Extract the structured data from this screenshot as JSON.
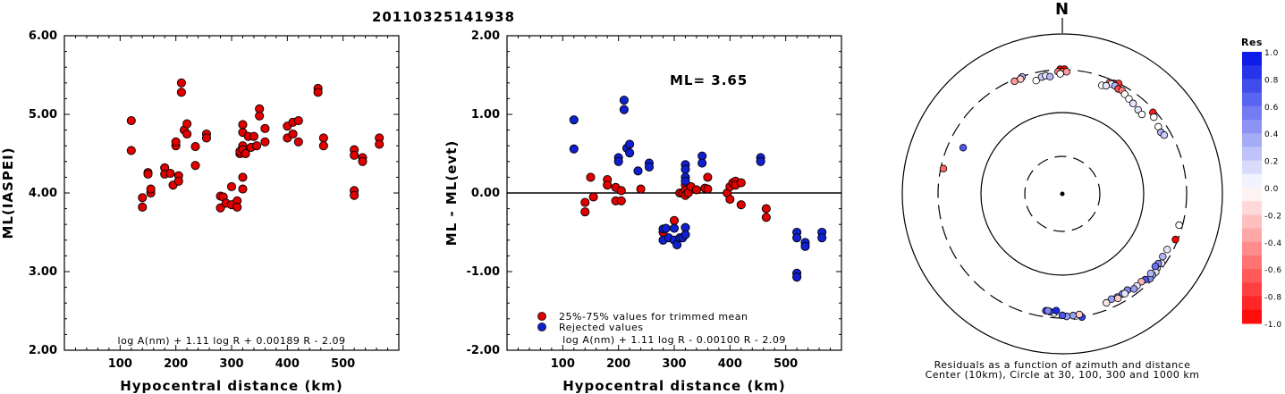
{
  "title": "20110325141938",
  "colors": {
    "red": "#e00000",
    "blue": "#1020d0"
  },
  "left": {
    "ylabel": "ML(IASPEI)",
    "xlabel": "Hypocentral distance (km)",
    "yticks": [
      "2.00",
      "3.00",
      "4.00",
      "5.00",
      "6.00"
    ],
    "xticks": [
      "100",
      "200",
      "300",
      "400",
      "500"
    ],
    "formula": "log A(nm) + 1.11 log R + 0.00189 R - 2.09"
  },
  "middle": {
    "ylabel": "ML - ML(evt)",
    "xlabel": "Hypocentral distance (km)",
    "yticks": [
      "-2.00",
      "-1.00",
      "0.00",
      "1.00",
      "2.00"
    ],
    "xticks": [
      "100",
      "200",
      "300",
      "400",
      "500"
    ],
    "ml_text": "ML= 3.65",
    "legend": [
      "25%-75% values for trimmed mean",
      "Rejected values"
    ],
    "formula": "log A(nm) + 1.11 log R - 0.00100 R - 2.09"
  },
  "polar": {
    "north": "N",
    "caption1": "Residuals as a function of azimuth and distance",
    "caption2": "Center (10km), Circle at 30, 100, 300 and 1000 km",
    "colorbar_title": "Res",
    "colorbar_ticks": [
      "1.0",
      "0.8",
      "0.6",
      "0.4",
      "0.2",
      "0.0",
      "-0.2",
      "-0.4",
      "-0.6",
      "-0.8",
      "-1.0"
    ]
  },
  "chart_data": [
    {
      "type": "scatter",
      "title": "20110325141938",
      "xlabel": "Hypocentral distance (km)",
      "ylabel": "ML(IASPEI)",
      "xlim": [
        0,
        600
      ],
      "ylim": [
        2,
        6
      ],
      "points": [
        [
          120,
          4.92
        ],
        [
          120,
          4.54
        ],
        [
          140,
          3.94
        ],
        [
          140,
          3.82
        ],
        [
          150,
          4.26
        ],
        [
          150,
          4.24
        ],
        [
          155,
          4.0
        ],
        [
          155,
          4.05
        ],
        [
          180,
          4.32
        ],
        [
          180,
          4.24
        ],
        [
          190,
          4.25
        ],
        [
          195,
          4.1
        ],
        [
          200,
          4.6
        ],
        [
          200,
          4.65
        ],
        [
          205,
          4.22
        ],
        [
          205,
          4.15
        ],
        [
          210,
          5.4
        ],
        [
          210,
          5.28
        ],
        [
          215,
          4.8
        ],
        [
          220,
          4.88
        ],
        [
          220,
          4.75
        ],
        [
          235,
          4.59
        ],
        [
          235,
          4.35
        ],
        [
          255,
          4.75
        ],
        [
          255,
          4.7
        ],
        [
          280,
          3.96
        ],
        [
          280,
          3.81
        ],
        [
          285,
          3.95
        ],
        [
          290,
          3.87
        ],
        [
          300,
          3.85
        ],
        [
          300,
          4.08
        ],
        [
          310,
          3.9
        ],
        [
          310,
          3.82
        ],
        [
          315,
          4.5
        ],
        [
          315,
          4.53
        ],
        [
          320,
          4.87
        ],
        [
          320,
          4.77
        ],
        [
          320,
          4.6
        ],
        [
          320,
          4.55
        ],
        [
          320,
          4.2
        ],
        [
          320,
          4.05
        ],
        [
          325,
          4.5
        ],
        [
          330,
          4.72
        ],
        [
          335,
          4.58
        ],
        [
          340,
          4.72
        ],
        [
          345,
          4.6
        ],
        [
          350,
          5.07
        ],
        [
          350,
          4.98
        ],
        [
          360,
          4.82
        ],
        [
          360,
          4.65
        ],
        [
          400,
          4.7
        ],
        [
          400,
          4.85
        ],
        [
          410,
          4.75
        ],
        [
          410,
          4.9
        ],
        [
          420,
          4.92
        ],
        [
          420,
          4.65
        ],
        [
          455,
          5.33
        ],
        [
          455,
          5.28
        ],
        [
          465,
          4.7
        ],
        [
          465,
          4.6
        ],
        [
          520,
          4.55
        ],
        [
          520,
          4.48
        ],
        [
          520,
          4.03
        ],
        [
          520,
          3.97
        ],
        [
          535,
          4.45
        ],
        [
          535,
          4.4
        ],
        [
          565,
          4.7
        ],
        [
          565,
          4.62
        ]
      ]
    },
    {
      "type": "scatter",
      "xlabel": "Hypocentral distance (km)",
      "ylabel": "ML - ML(evt)",
      "xlim": [
        0,
        600
      ],
      "ylim": [
        -2,
        2
      ],
      "hline": 0,
      "series": [
        {
          "name": "25%-75% values for trimmed mean",
          "color": "#e00000",
          "points": [
            [
              140,
              -0.12
            ],
            [
              140,
              -0.24
            ],
            [
              150,
              0.2
            ],
            [
              155,
              -0.05
            ],
            [
              180,
              0.17
            ],
            [
              180,
              0.1
            ],
            [
              195,
              0.07
            ],
            [
              195,
              -0.1
            ],
            [
              205,
              -0.1
            ],
            [
              205,
              0.03
            ],
            [
              240,
              0.05
            ],
            [
              280,
              -0.5
            ],
            [
              300,
              -0.35
            ],
            [
              310,
              0.0
            ],
            [
              315,
              0.0
            ],
            [
              320,
              0.1
            ],
            [
              320,
              0.03
            ],
            [
              320,
              -0.03
            ],
            [
              325,
              0.0
            ],
            [
              330,
              0.08
            ],
            [
              340,
              0.04
            ],
            [
              355,
              0.06
            ],
            [
              360,
              0.2
            ],
            [
              360,
              0.05
            ],
            [
              395,
              0.0
            ],
            [
              400,
              -0.08
            ],
            [
              400,
              0.08
            ],
            [
              405,
              0.13
            ],
            [
              410,
              0.15
            ],
            [
              410,
              0.1
            ],
            [
              420,
              0.13
            ],
            [
              420,
              -0.15
            ],
            [
              465,
              -0.2
            ],
            [
              465,
              -0.31
            ]
          ]
        },
        {
          "name": "Rejected values",
          "color": "#1020d0",
          "points": [
            [
              120,
              0.93
            ],
            [
              120,
              0.56
            ],
            [
              200,
              0.45
            ],
            [
              200,
              0.4
            ],
            [
              210,
              1.18
            ],
            [
              210,
              1.06
            ],
            [
              215,
              0.57
            ],
            [
              220,
              0.62
            ],
            [
              220,
              0.51
            ],
            [
              235,
              0.28
            ],
            [
              255,
              0.38
            ],
            [
              255,
              0.33
            ],
            [
              280,
              -0.46
            ],
            [
              280,
              -0.6
            ],
            [
              285,
              -0.45
            ],
            [
              290,
              -0.57
            ],
            [
              300,
              -0.6
            ],
            [
              300,
              -0.45
            ],
            [
              305,
              -0.66
            ],
            [
              310,
              -0.57
            ],
            [
              315,
              -0.57
            ],
            [
              320,
              -0.44
            ],
            [
              320,
              -0.53
            ],
            [
              320,
              0.36
            ],
            [
              320,
              0.3
            ],
            [
              320,
              0.2
            ],
            [
              320,
              0.15
            ],
            [
              350,
              0.47
            ],
            [
              350,
              0.38
            ],
            [
              455,
              0.45
            ],
            [
              455,
              0.4
            ],
            [
              520,
              -0.5
            ],
            [
              520,
              -0.57
            ],
            [
              520,
              -1.02
            ],
            [
              520,
              -1.07
            ],
            [
              535,
              -0.63
            ],
            [
              535,
              -0.68
            ],
            [
              565,
              -0.5
            ],
            [
              565,
              -0.57
            ]
          ]
        }
      ]
    },
    {
      "type": "scatter",
      "subtype": "polar",
      "xlabel": "Residuals as a function of azimuth and distance",
      "colorbar": {
        "min": -1.0,
        "max": 1.0
      },
      "rings_km": [
        30,
        100,
        300,
        1000
      ],
      "points_azimuth_dist_res": [
        [
          -1,
          305,
          -1.0
        ],
        [
          1,
          305,
          -1.0
        ],
        [
          -2,
          285,
          -0.5
        ],
        [
          0,
          285,
          -0.6
        ],
        [
          2,
          285,
          -0.4
        ],
        [
          -1,
          270,
          0.0
        ],
        [
          25,
          283,
          -0.9
        ],
        [
          27,
          298,
          -0.8
        ],
        [
          23,
          275,
          -0.6
        ],
        [
          25,
          276,
          -0.4
        ],
        [
          24,
          271,
          0.1
        ],
        [
          26,
          270,
          0.3
        ],
        [
          28,
          262,
          -0.7
        ],
        [
          30,
          265,
          -0.5
        ],
        [
          20,
          240,
          0.0
        ],
        [
          22,
          247,
          0.1
        ],
        [
          32,
          253,
          0.0
        ],
        [
          35,
          243,
          0.0
        ],
        [
          38,
          236,
          0.1
        ],
        [
          42,
          226,
          0.1
        ],
        [
          45,
          222,
          0.0
        ],
        [
          -19,
          296,
          0.3
        ],
        [
          -20,
          285,
          -0.2
        ],
        [
          -23,
          286,
          -0.4
        ],
        [
          -13,
          245,
          0.0
        ],
        [
          -10,
          260,
          0.2
        ],
        [
          -8,
          265,
          0.1
        ],
        [
          -6,
          255,
          0.3
        ],
        [
          48,
          282,
          -0.9
        ],
        [
          50,
          265,
          0.0
        ],
        [
          55,
          250,
          0.0
        ],
        [
          58,
          244,
          0.3
        ],
        [
          60,
          253,
          0.2
        ],
        [
          105,
          275,
          0.0
        ],
        [
          112,
          283,
          -1.0
        ],
        [
          125,
          276,
          0.0
        ],
        [
          128,
          271,
          0.2
        ],
        [
          130,
          282,
          0.1
        ],
        [
          132,
          278,
          0.3
        ],
        [
          134,
          283,
          0.5
        ],
        [
          118,
          260,
          0.1
        ],
        [
          122,
          258,
          0.3
        ],
        [
          126,
          260,
          0.5
        ],
        [
          128,
          255,
          0.6
        ],
        [
          132,
          262,
          0.3
        ],
        [
          136,
          264,
          0.7
        ],
        [
          138,
          257,
          -0.3
        ],
        [
          141,
          259,
          0.1
        ],
        [
          143,
          263,
          0.4
        ],
        [
          146,
          244,
          0.5
        ],
        [
          149,
          248,
          0.5
        ],
        [
          152,
          249,
          0.5
        ],
        [
          155,
          244,
          0.4
        ],
        [
          148,
          254,
          0.1
        ],
        [
          152,
          258,
          -0.2
        ],
        [
          158,
          253,
          -0.1
        ],
        [
          171,
          306,
          0.8
        ],
        [
          174,
          291,
          0.0
        ],
        [
          172,
          282,
          -0.2
        ],
        [
          175,
          285,
          0.4
        ],
        [
          178,
          288,
          0.4
        ],
        [
          180,
          280,
          0.7
        ],
        [
          184,
          266,
          0.0
        ],
        [
          186,
          259,
          0.7
        ],
        [
          188,
          256,
          0.8
        ],
        [
          183,
          249,
          0.9
        ],
        [
          187,
          255,
          0.5
        ],
        [
          -78,
          280,
          -0.6
        ],
        [
          -65,
          205,
          0.7
        ]
      ]
    }
  ]
}
